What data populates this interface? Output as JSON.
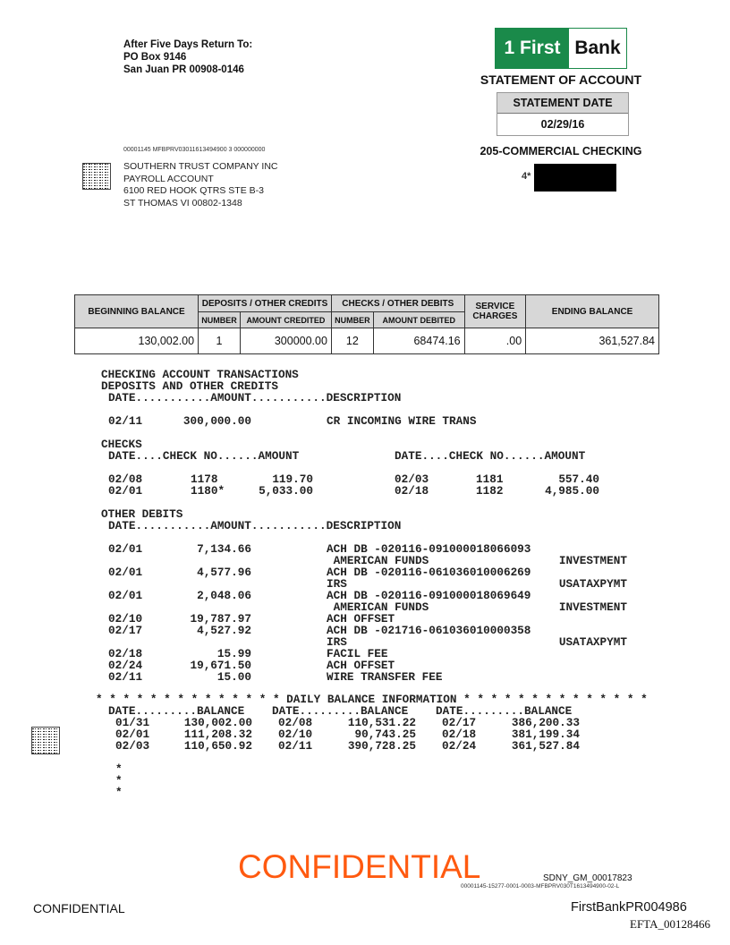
{
  "return_address": [
    "After Five Days Return To:",
    "PO Box 9146",
    "San Juan PR 00908-0146"
  ],
  "logo": {
    "left": "1 First",
    "right": "Bank",
    "color": "#1a8a4a"
  },
  "statement_title": "STATEMENT OF ACCOUNT",
  "statement_date": {
    "label": "STATEMENT DATE",
    "value": "02/29/16"
  },
  "account_type": "205-COMMERCIAL CHECKING",
  "account_prefix": "4*",
  "mail_code": "00001145  MFBPRV03011613494900  3  000000000",
  "address": [
    "SOUTHERN TRUST COMPANY INC",
    "PAYROLL ACCOUNT",
    "6100 RED HOOK QTRS STE B-3",
    "ST THOMAS VI  00802-1348"
  ],
  "summary": {
    "headers": {
      "beginning": "BEGINNING BALANCE",
      "deposits": "DEPOSITS / OTHER CREDITS",
      "checks": "CHECKS / OTHER DEBITS",
      "service": "SERVICE CHARGES",
      "ending": "ENDING BALANCE",
      "number": "NUMBER",
      "amount_credited": "AMOUNT  CREDITED",
      "amount_debited": "AMOUNT DEBITED"
    },
    "values": {
      "beginning": "130,002.00",
      "dep_number": "1",
      "dep_amount": "300000.00",
      "chk_number": "12",
      "chk_amount": "68474.16",
      "service": ".00",
      "ending": "361,527.84"
    }
  },
  "transactions": {
    "title": "CHECKING ACCOUNT TRANSACTIONS",
    "deposits_title": "DEPOSITS AND OTHER CREDITS",
    "deposits_header": "DATE...........AMOUNT...........DESCRIPTION",
    "deposits": [
      {
        "date": "02/11",
        "amount": "300,000.00",
        "description": "CR INCOMING WIRE TRANS"
      }
    ],
    "checks_title": "CHECKS",
    "checks_header": "DATE....CHECK NO......AMOUNT",
    "checks": [
      {
        "date": "02/08",
        "no": "1178",
        "amount": "119.70"
      },
      {
        "date": "02/01",
        "no": "1180*",
        "amount": "5,033.00"
      },
      {
        "date": "02/03",
        "no": "1181",
        "amount": "557.40"
      },
      {
        "date": "02/18",
        "no": "1182",
        "amount": "4,985.00"
      }
    ],
    "debits_title": "OTHER DEBITS",
    "debits_header": "DATE...........AMOUNT...........DESCRIPTION",
    "debits": [
      {
        "date": "02/01",
        "amount": "7,134.66",
        "description": "ACH DB -020116-091000018066093",
        "line2": " AMERICAN FUNDS",
        "tag": "INVESTMENT"
      },
      {
        "date": "02/01",
        "amount": "4,577.96",
        "description": "ACH DB -020116-061036010006269",
        "line2": "IRS",
        "tag": "USATAXPYMT"
      },
      {
        "date": "02/01",
        "amount": "2,048.06",
        "description": "ACH DB -020116-091000018069649",
        "line2": " AMERICAN FUNDS",
        "tag": "INVESTMENT"
      },
      {
        "date": "02/10",
        "amount": "19,787.97",
        "description": "ACH OFFSET"
      },
      {
        "date": "02/17",
        "amount": "4,527.92",
        "description": "ACH DB -021716-061036010000358",
        "line2": "IRS",
        "tag": "USATAXPYMT"
      },
      {
        "date": "02/18",
        "amount": "15.99",
        "description": "FACIL FEE"
      },
      {
        "date": "02/24",
        "amount": "19,671.50",
        "description": "ACH OFFSET"
      },
      {
        "date": "02/11",
        "amount": "15.00",
        "description": "WIRE TRANSFER FEE"
      }
    ]
  },
  "daily_balance": {
    "title": "* * * * * * * * * * * * * * DAILY BALANCE INFORMATION * * * * * * * * * * * * * *",
    "header": "DATE.........BALANCE",
    "entries": [
      {
        "date": "01/31",
        "balance": "130,002.00"
      },
      {
        "date": "02/01",
        "balance": "111,208.32"
      },
      {
        "date": "02/03",
        "balance": "110,650.92"
      },
      {
        "date": "02/08",
        "balance": "110,531.22"
      },
      {
        "date": "02/10",
        "balance": "90,743.25"
      },
      {
        "date": "02/11",
        "balance": "390,728.25"
      },
      {
        "date": "02/17",
        "balance": "386,200.33"
      },
      {
        "date": "02/18",
        "balance": "381,199.34"
      },
      {
        "date": "02/24",
        "balance": "361,527.84"
      }
    ],
    "stars": [
      "*",
      "*",
      "*"
    ]
  },
  "footer": {
    "confidential_stamp": "CONFIDENTIAL",
    "sdny": "SDNY_GM_00017823",
    "small_code": "00001145-15277-0001-0003-MFBPRV030T1613494900-02-L",
    "confidential": "CONFIDENTIAL",
    "bates": "FirstBankPR004986",
    "efta": "EFTA_00128466",
    "stamp_color": "#ff5a10"
  }
}
